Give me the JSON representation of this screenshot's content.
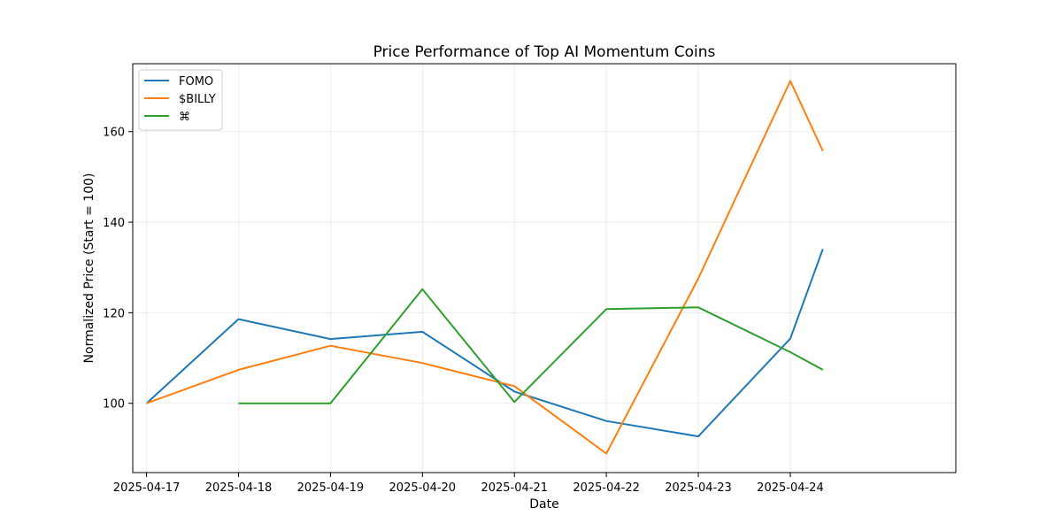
{
  "chart_data": {
    "type": "line",
    "title": "Price Performance of Top AI Momentum Coins",
    "xlabel": "Date",
    "ylabel": "Normalized Price (Start = 100)",
    "x_tick_labels": [
      "2025-04-17",
      "2025-04-18",
      "2025-04-19",
      "2025-04-20",
      "2025-04-21",
      "2025-04-22",
      "2025-04-23",
      "2025-04-24"
    ],
    "x_tick_dates": [
      "2025-04-17",
      "2025-04-18",
      "2025-04-19",
      "2025-04-20",
      "2025-04-21",
      "2025-04-22",
      "2025-04-23",
      "2025-04-24"
    ],
    "xlim": [
      "2025-04-16T20:24",
      "2025-04-25T19:12"
    ],
    "ylim": [
      84.7,
      175
    ],
    "y_ticks": [
      100,
      120,
      140,
      160
    ],
    "grid": true,
    "legend_position": "upper-left",
    "series": [
      {
        "name": "FOMO",
        "color": "#1f77b4",
        "points": [
          {
            "x": "2025-04-17T00:00",
            "y": 100
          },
          {
            "x": "2025-04-18T00:00",
            "y": 118.6
          },
          {
            "x": "2025-04-19T00:00",
            "y": 114.2
          },
          {
            "x": "2025-04-20T00:00",
            "y": 115.8
          },
          {
            "x": "2025-04-21T00:00",
            "y": 102.6
          },
          {
            "x": "2025-04-22T00:00",
            "y": 96.1
          },
          {
            "x": "2025-04-23T00:00",
            "y": 92.7
          },
          {
            "x": "2025-04-24T00:00",
            "y": 114.3
          },
          {
            "x": "2025-04-24T08:30",
            "y": 134.1
          }
        ]
      },
      {
        "name": "$BILLY",
        "color": "#ff7f0e",
        "points": [
          {
            "x": "2025-04-17T00:00",
            "y": 100
          },
          {
            "x": "2025-04-18T00:00",
            "y": 107.4
          },
          {
            "x": "2025-04-19T00:00",
            "y": 112.7
          },
          {
            "x": "2025-04-20T00:00",
            "y": 108.9
          },
          {
            "x": "2025-04-21T00:00",
            "y": 103.8
          },
          {
            "x": "2025-04-22T00:00",
            "y": 88.9
          },
          {
            "x": "2025-04-23T00:00",
            "y": 127.6
          },
          {
            "x": "2025-04-24T00:00",
            "y": 171.2
          },
          {
            "x": "2025-04-24T08:30",
            "y": 155.7
          }
        ]
      },
      {
        "name": "⌘",
        "color": "#2ca02c",
        "points": [
          {
            "x": "2025-04-18T00:00",
            "y": 100
          },
          {
            "x": "2025-04-19T00:00",
            "y": 100
          },
          {
            "x": "2025-04-20T00:00",
            "y": 125.2
          },
          {
            "x": "2025-04-21T00:00",
            "y": 100.3
          },
          {
            "x": "2025-04-22T00:00",
            "y": 120.8
          },
          {
            "x": "2025-04-23T00:00",
            "y": 121.2
          },
          {
            "x": "2025-04-24T00:00",
            "y": 111.3
          },
          {
            "x": "2025-04-24T08:30",
            "y": 107.4
          }
        ]
      }
    ]
  }
}
